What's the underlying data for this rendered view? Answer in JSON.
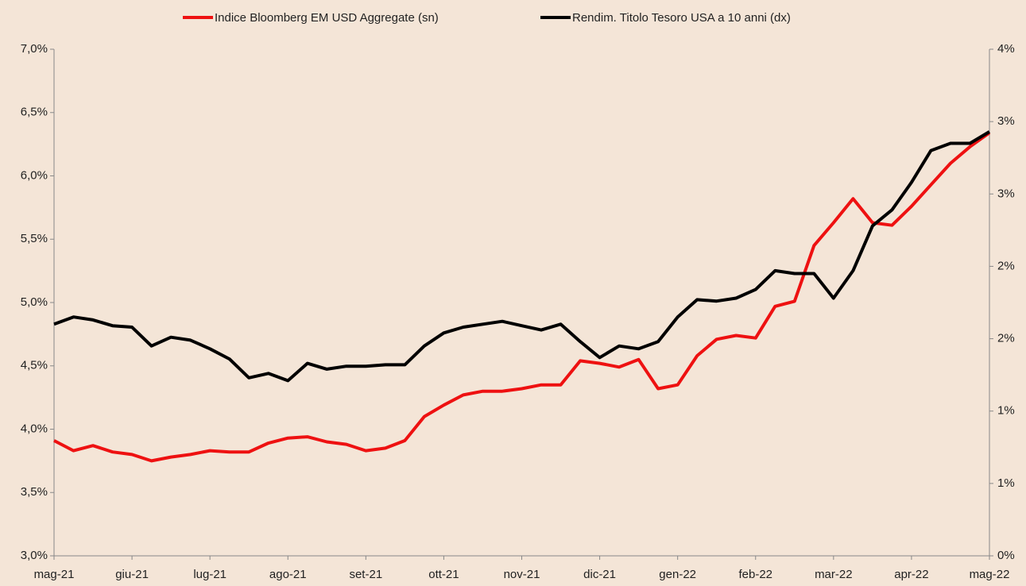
{
  "chart_data": {
    "type": "line",
    "x": [
      0,
      0.25,
      0.5,
      0.75,
      1,
      1.25,
      1.5,
      1.75,
      2,
      2.25,
      2.5,
      2.75,
      3,
      3.25,
      3.5,
      3.75,
      4,
      4.25,
      4.5,
      4.75,
      5,
      5.25,
      5.5,
      5.75,
      6,
      6.25,
      6.5,
      6.75,
      7,
      7.25,
      7.5,
      7.75,
      8,
      8.25,
      8.5,
      8.75,
      9,
      9.25,
      9.5,
      9.75,
      10,
      10.25,
      10.5,
      10.75,
      11,
      11.25,
      11.5,
      11.75,
      12
    ],
    "xlim": [
      0,
      12
    ],
    "xticks": [
      {
        "value": 0,
        "label": "mag-21"
      },
      {
        "value": 1,
        "label": "giu-21"
      },
      {
        "value": 2,
        "label": "lug-21"
      },
      {
        "value": 3,
        "label": "ago-21"
      },
      {
        "value": 4,
        "label": "set-21"
      },
      {
        "value": 5,
        "label": "ott-21"
      },
      {
        "value": 6,
        "label": "nov-21"
      },
      {
        "value": 7,
        "label": "dic-21"
      },
      {
        "value": 8,
        "label": "gen-22"
      },
      {
        "value": 9,
        "label": "feb-22"
      },
      {
        "value": 10,
        "label": "mar-22"
      },
      {
        "value": 11,
        "label": "apr-22"
      },
      {
        "value": 12,
        "label": "mag-22"
      }
    ],
    "ylim": [
      3.0,
      7.0
    ],
    "yticks": [
      {
        "value": 3.0,
        "label": "3,0%"
      },
      {
        "value": 3.5,
        "label": "3,5%"
      },
      {
        "value": 4.0,
        "label": "4,0%"
      },
      {
        "value": 4.5,
        "label": "4,5%"
      },
      {
        "value": 5.0,
        "label": "5,0%"
      },
      {
        "value": 5.5,
        "label": "5,5%"
      },
      {
        "value": 6.0,
        "label": "6,0%"
      },
      {
        "value": 6.5,
        "label": "6,5%"
      },
      {
        "value": 7.0,
        "label": "7,0%"
      }
    ],
    "y2lim": [
      0,
      3.5
    ],
    "y2ticks": [
      {
        "value": 0,
        "label": "0%"
      },
      {
        "value": 0.5,
        "label": "1%"
      },
      {
        "value": 1.0,
        "label": "1%"
      },
      {
        "value": 1.5,
        "label": "2%"
      },
      {
        "value": 2.0,
        "label": "2%"
      },
      {
        "value": 2.5,
        "label": "3%"
      },
      {
        "value": 3.0,
        "label": "3%"
      },
      {
        "value": 3.5,
        "label": "4%"
      }
    ],
    "legend": "top",
    "series": [
      {
        "name": "Indice Bloomberg EM USD Aggregate (sn)",
        "color": "#ee1111",
        "axis": "y",
        "values": [
          3.91,
          3.83,
          3.87,
          3.82,
          3.8,
          3.75,
          3.78,
          3.8,
          3.83,
          3.82,
          3.82,
          3.89,
          3.93,
          3.94,
          3.9,
          3.88,
          3.83,
          3.85,
          3.91,
          4.1,
          4.19,
          4.27,
          4.3,
          4.3,
          4.32,
          4.35,
          4.35,
          4.54,
          4.52,
          4.49,
          4.55,
          4.32,
          4.35,
          4.58,
          4.71,
          4.74,
          4.72,
          4.97,
          5.01,
          5.45,
          5.63,
          5.82,
          5.63,
          5.61,
          5.76,
          5.93,
          6.1,
          6.23,
          6.34
        ]
      },
      {
        "name": "Rendim. Titolo Tesoro USA a 10 anni (dx)",
        "color": "#000000",
        "axis": "y2",
        "values": [
          1.6,
          1.65,
          1.63,
          1.59,
          1.58,
          1.45,
          1.51,
          1.49,
          1.43,
          1.36,
          1.23,
          1.26,
          1.21,
          1.33,
          1.29,
          1.31,
          1.31,
          1.32,
          1.32,
          1.45,
          1.54,
          1.58,
          1.6,
          1.62,
          1.59,
          1.56,
          1.6,
          1.48,
          1.37,
          1.45,
          1.43,
          1.48,
          1.65,
          1.77,
          1.76,
          1.78,
          1.84,
          1.97,
          1.95,
          1.95,
          1.78,
          1.97,
          2.28,
          2.39,
          2.58,
          2.8,
          2.85,
          2.85,
          2.93
        ]
      }
    ]
  }
}
